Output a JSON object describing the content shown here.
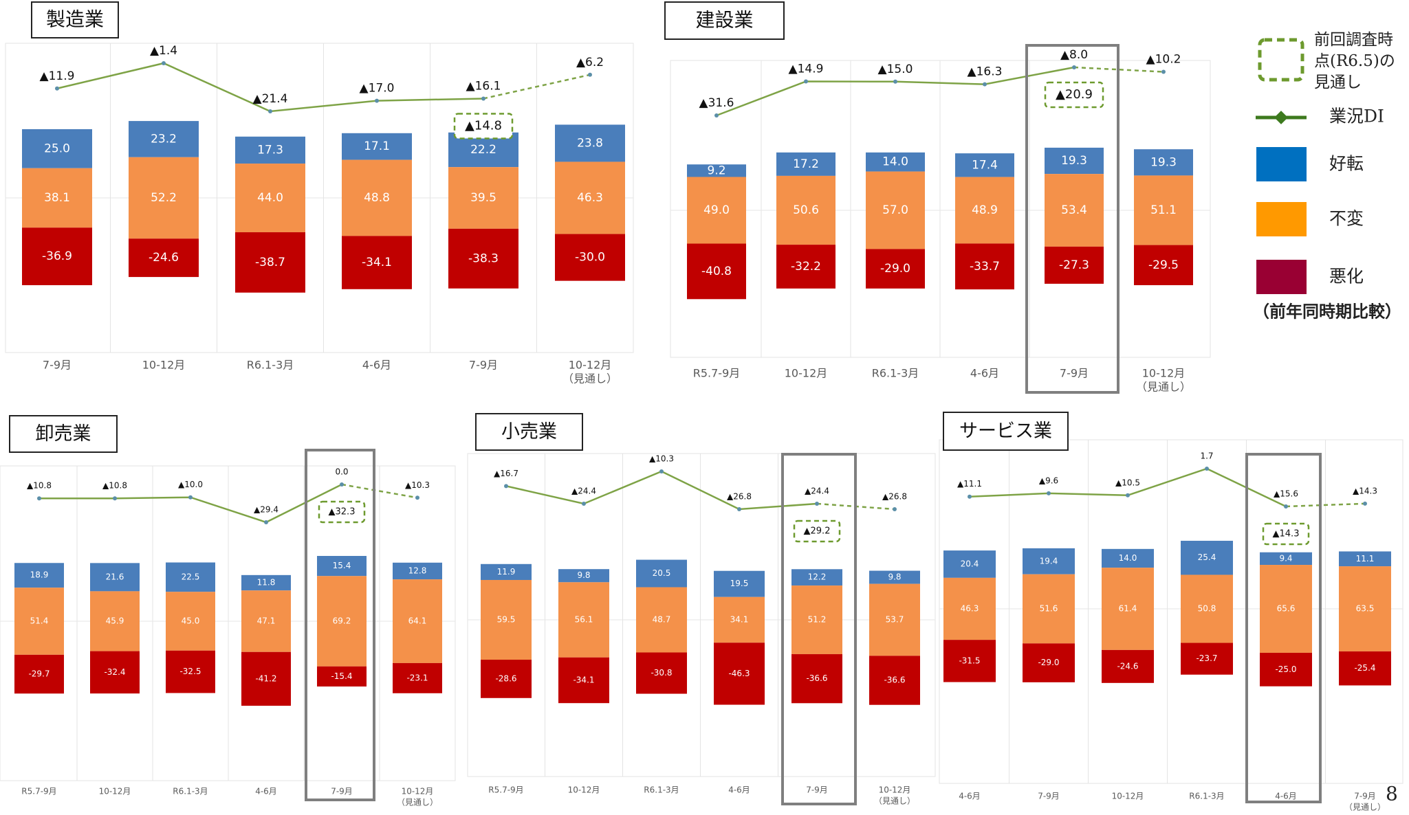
{
  "colors": {
    "improve": "#4a7ebb",
    "unchanged": "#f4914a",
    "worsen": "#c00000",
    "di_line": "#7ea346",
    "di_marker": "#7ea346",
    "dashed_box": "#6d9a2e",
    "highlight_box": "#7f7f7f",
    "legend_improve": "#0070c0",
    "legend_unchanged": "#ff9900",
    "legend_worsen": "#990033",
    "legend_line": "#3d7a1e"
  },
  "legend": {
    "prev_forecast": "前回調査時点(R6.5)の見通し",
    "di": "業況DI",
    "improve": "好転",
    "unchanged": "不変",
    "worsen": "悪化",
    "note": "（前年同時期比較）"
  },
  "page_number": "8",
  "chart_data": [
    {
      "type": "bar",
      "title": "製造業",
      "categories": [
        "7-9月",
        "10-12月",
        "R6.1-3月",
        "4-6月",
        "7-9月",
        "10-12月\n（見通し）"
      ],
      "series": [
        {
          "name": "好転",
          "values": [
            25.0,
            23.2,
            17.3,
            17.1,
            22.2,
            23.8
          ]
        },
        {
          "name": "不変",
          "values": [
            38.1,
            52.2,
            44.0,
            48.8,
            39.5,
            46.3
          ]
        },
        {
          "name": "悪化",
          "values": [
            -36.9,
            -24.6,
            -38.7,
            -34.1,
            -38.3,
            -30.0
          ]
        },
        {
          "name": "業況DI",
          "values": [
            -11.9,
            -1.4,
            -21.4,
            -17.0,
            -16.1,
            -6.2
          ]
        }
      ],
      "prev_forecast": -14.8,
      "highlight_index": 4
    },
    {
      "type": "bar",
      "title": "建設業",
      "categories": [
        "R5.7-9月",
        "10-12月",
        "R6.1-3月",
        "4-6月",
        "7-9月",
        "10-12月\n（見通し）"
      ],
      "series": [
        {
          "name": "好転",
          "values": [
            9.2,
            17.2,
            14.0,
            17.4,
            19.3,
            19.3
          ]
        },
        {
          "name": "不変",
          "values": [
            49.0,
            50.6,
            57.0,
            48.9,
            53.4,
            51.1
          ]
        },
        {
          "name": "悪化",
          "values": [
            -40.8,
            -32.2,
            -29.0,
            -33.7,
            -27.3,
            -29.5
          ]
        },
        {
          "name": "業況DI",
          "values": [
            -31.6,
            -14.9,
            -15.0,
            -16.3,
            -8.0,
            -10.2
          ]
        }
      ],
      "prev_forecast": -20.9,
      "highlight_index": 4
    },
    {
      "type": "bar",
      "title": "卸売業",
      "categories": [
        "R5.7-9月",
        "10-12月",
        "R6.1-3月",
        "4-6月",
        "7-9月",
        "10-12月\n（見通し）"
      ],
      "series": [
        {
          "name": "好転",
          "values": [
            18.9,
            21.6,
            22.5,
            11.8,
            15.4,
            12.8
          ]
        },
        {
          "name": "不変",
          "values": [
            51.4,
            45.9,
            45.0,
            47.1,
            69.2,
            64.1
          ]
        },
        {
          "name": "悪化",
          "values": [
            -29.7,
            -32.4,
            -32.5,
            -41.2,
            -15.4,
            -23.1
          ]
        },
        {
          "name": "業況DI",
          "values": [
            -10.8,
            -10.8,
            -10.0,
            -29.4,
            0.0,
            -10.3
          ]
        }
      ],
      "prev_forecast": -32.3,
      "highlight_index": 4
    },
    {
      "type": "bar",
      "title": "小売業",
      "categories": [
        "R5.7-9月",
        "10-12月",
        "R6.1-3月",
        "4-6月",
        "7-9月",
        "10-12月\n（見通し）"
      ],
      "series": [
        {
          "name": "好転",
          "values": [
            11.9,
            9.8,
            20.5,
            19.5,
            12.2,
            9.8
          ]
        },
        {
          "name": "不変",
          "values": [
            59.5,
            56.1,
            48.7,
            34.1,
            51.2,
            53.7
          ]
        },
        {
          "name": "悪化",
          "values": [
            -28.6,
            -34.1,
            -30.8,
            -46.3,
            -36.6,
            -36.6
          ]
        },
        {
          "name": "業況DI",
          "values": [
            -16.7,
            -24.4,
            -10.3,
            -26.8,
            -24.4,
            -26.8
          ]
        }
      ],
      "prev_forecast": -29.2,
      "highlight_index": 4
    },
    {
      "type": "bar",
      "title": "サービス業",
      "categories": [
        "4-6月",
        "7-9月",
        "10-12月",
        "R6.1-3月",
        "4-6月",
        "7-9月\n（見通し）"
      ],
      "series": [
        {
          "name": "好転",
          "values": [
            20.4,
            19.4,
            14.0,
            25.4,
            9.4,
            11.1
          ]
        },
        {
          "name": "不変",
          "values": [
            46.3,
            51.6,
            61.4,
            50.8,
            65.6,
            63.5
          ]
        },
        {
          "name": "悪化",
          "values": [
            -31.5,
            -29.0,
            -24.6,
            -23.7,
            -25.0,
            -25.4
          ]
        },
        {
          "name": "業況DI",
          "values": [
            -11.1,
            -9.6,
            -10.5,
            1.7,
            -15.6,
            -14.3
          ]
        }
      ],
      "prev_forecast": -14.3,
      "highlight_index": 4
    }
  ]
}
